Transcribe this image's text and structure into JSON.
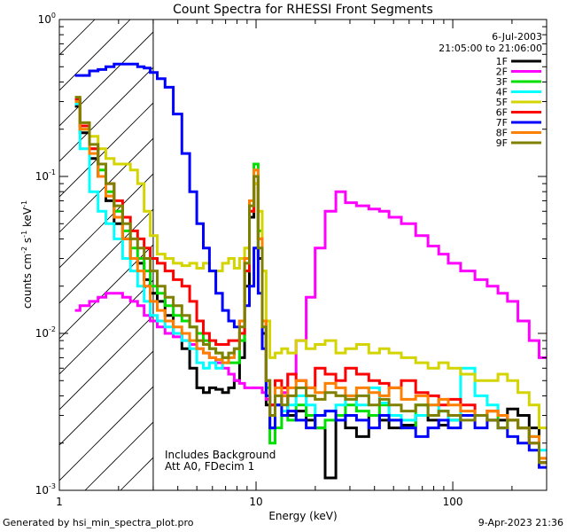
{
  "chart_data": {
    "type": "line",
    "title": "Count Spectra for RHESSI Front Segments",
    "xlabel": "Energy (keV)",
    "ylabel": "counts cm^-2 s^-1 keV^-1",
    "ylabel_parts": {
      "a": "counts cm",
      "b": "-2",
      "c": " s",
      "d": "-1",
      "e": " keV",
      "f": "-1"
    },
    "xscale": "log",
    "yscale": "log",
    "xlim": [
      1,
      300
    ],
    "ylim": [
      0.001,
      1
    ],
    "x_ticks": [
      {
        "value": 1,
        "label": "1"
      },
      {
        "value": 10,
        "label": "10"
      },
      {
        "value": 100,
        "label": "100"
      }
    ],
    "y_ticks": [
      {
        "value": 0.001,
        "base": "10",
        "exp": "-3"
      },
      {
        "value": 0.01,
        "base": "10",
        "exp": "-2"
      },
      {
        "value": 0.1,
        "base": "10",
        "exp": "-1"
      },
      {
        "value": 1,
        "base": "10",
        "exp": "0"
      }
    ],
    "date": "6-Jul-2003",
    "time_range": "21:05:00 to 21:06:00",
    "hatched_region_max_keV": 3,
    "annotations": [
      "Includes Background",
      "Att A0, FDecim 1"
    ],
    "series": [
      {
        "name": "1F",
        "color": "#000000",
        "x": [
          1.2,
          1.35,
          1.5,
          1.65,
          1.8,
          2.0,
          2.2,
          2.4,
          2.6,
          2.8,
          3.0,
          3.3,
          3.6,
          4.0,
          4.4,
          4.8,
          5.2,
          5.6,
          6.0,
          6.5,
          7.0,
          7.5,
          8.0,
          8.5,
          9.0,
          9.5,
          10.0,
          10.5,
          11.0,
          11.5,
          12,
          13,
          14,
          15,
          17,
          19,
          21,
          24,
          27,
          30,
          35,
          40,
          45,
          50,
          60,
          70,
          80,
          90,
          100,
          120,
          140,
          160,
          180,
          200,
          230,
          260,
          290
        ],
        "y": [
          0.28,
          0.19,
          0.13,
          0.1,
          0.07,
          0.05,
          0.04,
          0.03,
          0.028,
          0.022,
          0.018,
          0.016,
          0.013,
          0.01,
          0.008,
          0.006,
          0.0045,
          0.0042,
          0.0045,
          0.0044,
          0.0042,
          0.0045,
          0.005,
          0.007,
          0.02,
          0.055,
          0.09,
          0.03,
          0.01,
          0.0035,
          0.0025,
          0.0035,
          0.004,
          0.003,
          0.0032,
          0.0028,
          0.0025,
          0.0012,
          0.003,
          0.0025,
          0.0022,
          0.003,
          0.0028,
          0.0025,
          0.0026,
          0.003,
          0.0028,
          0.0026,
          0.0028,
          0.003,
          0.003,
          0.0028,
          0.0028,
          0.0033,
          0.003,
          0.0025,
          0.0015
        ]
      },
      {
        "name": "2F",
        "color": "#ff00ff",
        "x": [
          1.2,
          1.35,
          1.5,
          1.65,
          1.8,
          2.0,
          2.2,
          2.4,
          2.6,
          2.8,
          3.0,
          3.3,
          3.6,
          4.0,
          4.4,
          4.8,
          5.2,
          5.6,
          6.0,
          6.5,
          7.0,
          7.5,
          8.0,
          8.5,
          9.0,
          9.5,
          10.0,
          10.5,
          11.0,
          11.5,
          12,
          13,
          14,
          15,
          17,
          19,
          21,
          24,
          27,
          30,
          35,
          40,
          45,
          50,
          60,
          70,
          80,
          90,
          100,
          120,
          140,
          160,
          180,
          200,
          230,
          260,
          290
        ],
        "y": [
          0.014,
          0.015,
          0.016,
          0.017,
          0.018,
          0.018,
          0.017,
          0.016,
          0.015,
          0.013,
          0.012,
          0.011,
          0.01,
          0.0095,
          0.009,
          0.0085,
          0.008,
          0.0075,
          0.007,
          0.0065,
          0.006,
          0.0055,
          0.005,
          0.0048,
          0.0045,
          0.0045,
          0.0045,
          0.0045,
          0.0042,
          0.0038,
          0.0035,
          0.0035,
          0.0042,
          0.0055,
          0.009,
          0.017,
          0.035,
          0.06,
          0.08,
          0.068,
          0.065,
          0.062,
          0.06,
          0.055,
          0.05,
          0.042,
          0.036,
          0.032,
          0.028,
          0.025,
          0.022,
          0.02,
          0.018,
          0.016,
          0.012,
          0.009,
          0.007
        ]
      },
      {
        "name": "3F",
        "color": "#00e000",
        "x": [
          1.2,
          1.35,
          1.5,
          1.65,
          1.8,
          2.0,
          2.2,
          2.4,
          2.6,
          2.8,
          3.0,
          3.3,
          3.6,
          4.0,
          4.4,
          4.8,
          5.2,
          5.6,
          6.0,
          6.5,
          7.0,
          7.5,
          8.0,
          8.5,
          9.0,
          9.5,
          10.0,
          10.5,
          11.0,
          11.5,
          12,
          13,
          14,
          15,
          17,
          19,
          21,
          24,
          27,
          30,
          35,
          40,
          45,
          50,
          60,
          70,
          80,
          90,
          100,
          120,
          140,
          160,
          180,
          200,
          230,
          260,
          290
        ],
        "y": [
          0.3,
          0.2,
          0.15,
          0.11,
          0.08,
          0.06,
          0.045,
          0.035,
          0.03,
          0.025,
          0.02,
          0.018,
          0.015,
          0.013,
          0.012,
          0.011,
          0.01,
          0.009,
          0.008,
          0.0075,
          0.007,
          0.0065,
          0.0065,
          0.009,
          0.025,
          0.06,
          0.12,
          0.045,
          0.012,
          0.0045,
          0.002,
          0.0025,
          0.003,
          0.0028,
          0.0035,
          0.003,
          0.0025,
          0.0028,
          0.003,
          0.0035,
          0.0032,
          0.003,
          0.0035,
          0.0028,
          0.0025,
          0.0035,
          0.003,
          0.0032,
          0.0028,
          0.003,
          0.003,
          0.0032,
          0.0025,
          0.0028,
          0.0025,
          0.0022,
          0.0016
        ]
      },
      {
        "name": "4F",
        "color": "#00ffff",
        "x": [
          1.2,
          1.35,
          1.5,
          1.65,
          1.8,
          2.0,
          2.2,
          2.4,
          2.6,
          2.8,
          3.0,
          3.3,
          3.6,
          4.0,
          4.4,
          4.8,
          5.2,
          5.6,
          6.0,
          6.5,
          7.0,
          7.5,
          8.0,
          8.5,
          9.0,
          9.5,
          10.0,
          10.5,
          11.0,
          11.5,
          12,
          13,
          14,
          15,
          17,
          19,
          21,
          24,
          27,
          30,
          35,
          40,
          45,
          50,
          60,
          70,
          80,
          90,
          100,
          120,
          140,
          160,
          180,
          200,
          230,
          260,
          290
        ],
        "y": [
          0.29,
          0.15,
          0.08,
          0.06,
          0.05,
          0.04,
          0.03,
          0.025,
          0.02,
          0.016,
          0.013,
          0.012,
          0.011,
          0.01,
          0.009,
          0.008,
          0.0065,
          0.006,
          0.0065,
          0.006,
          0.0065,
          0.007,
          0.008,
          0.01,
          0.025,
          0.065,
          0.11,
          0.035,
          0.011,
          0.005,
          0.003,
          0.0035,
          0.0032,
          0.0035,
          0.004,
          0.0035,
          0.003,
          0.0032,
          0.0035,
          0.004,
          0.0035,
          0.0045,
          0.0036,
          0.003,
          0.0028,
          0.003,
          0.0035,
          0.0032,
          0.0028,
          0.006,
          0.004,
          0.0035,
          0.003,
          0.0028,
          0.0025,
          0.0022,
          0.0018
        ]
      },
      {
        "name": "5F",
        "color": "#d4d400",
        "x": [
          1.2,
          1.35,
          1.5,
          1.65,
          1.8,
          2.0,
          2.2,
          2.4,
          2.6,
          2.8,
          3.0,
          3.3,
          3.6,
          4.0,
          4.4,
          4.8,
          5.2,
          5.6,
          6.0,
          6.5,
          7.0,
          7.5,
          8.0,
          8.5,
          9.0,
          9.5,
          10.0,
          10.5,
          11.0,
          11.5,
          12,
          13,
          14,
          15,
          17,
          19,
          21,
          24,
          27,
          30,
          35,
          40,
          45,
          50,
          60,
          70,
          80,
          90,
          100,
          120,
          140,
          160,
          180,
          200,
          230,
          260,
          290
        ],
        "y": [
          0.3,
          0.22,
          0.18,
          0.15,
          0.13,
          0.12,
          0.12,
          0.11,
          0.09,
          0.06,
          0.042,
          0.032,
          0.03,
          0.028,
          0.027,
          0.028,
          0.026,
          0.028,
          0.025,
          0.025,
          0.028,
          0.03,
          0.026,
          0.03,
          0.035,
          0.06,
          0.09,
          0.06,
          0.025,
          0.012,
          0.007,
          0.0075,
          0.008,
          0.0075,
          0.009,
          0.008,
          0.0085,
          0.009,
          0.0075,
          0.008,
          0.0085,
          0.0075,
          0.008,
          0.0075,
          0.007,
          0.0065,
          0.006,
          0.0065,
          0.006,
          0.0055,
          0.005,
          0.005,
          0.0055,
          0.005,
          0.0042,
          0.0035,
          0.0025
        ]
      },
      {
        "name": "6F",
        "color": "#ff0000",
        "x": [
          1.2,
          1.35,
          1.5,
          1.65,
          1.8,
          2.0,
          2.2,
          2.4,
          2.6,
          2.8,
          3.0,
          3.3,
          3.6,
          4.0,
          4.4,
          4.8,
          5.2,
          5.6,
          6.0,
          6.5,
          7.0,
          7.5,
          8.0,
          8.5,
          9.0,
          9.5,
          10.0,
          10.5,
          11.0,
          11.5,
          12,
          13,
          14,
          15,
          17,
          19,
          21,
          24,
          27,
          30,
          35,
          40,
          45,
          50,
          60,
          70,
          80,
          90,
          100,
          120,
          140,
          160,
          180,
          200,
          230,
          260,
          290
        ],
        "y": [
          0.31,
          0.21,
          0.15,
          0.12,
          0.09,
          0.07,
          0.055,
          0.045,
          0.04,
          0.035,
          0.03,
          0.028,
          0.025,
          0.022,
          0.02,
          0.016,
          0.012,
          0.01,
          0.009,
          0.0085,
          0.0085,
          0.009,
          0.009,
          0.01,
          0.025,
          0.06,
          0.1,
          0.04,
          0.012,
          0.005,
          0.0035,
          0.005,
          0.0045,
          0.0055,
          0.005,
          0.0045,
          0.006,
          0.0055,
          0.005,
          0.006,
          0.0055,
          0.005,
          0.0048,
          0.0045,
          0.005,
          0.0042,
          0.004,
          0.0035,
          0.0038,
          0.0035,
          0.003,
          0.0032,
          0.003,
          0.0028,
          0.0025,
          0.002,
          0.0015
        ]
      },
      {
        "name": "7F",
        "color": "#0000ff",
        "x": [
          1.2,
          1.35,
          1.5,
          1.65,
          1.8,
          2.0,
          2.2,
          2.4,
          2.6,
          2.8,
          3.0,
          3.3,
          3.6,
          4.0,
          4.4,
          4.8,
          5.2,
          5.6,
          6.0,
          6.5,
          7.0,
          7.5,
          8.0,
          8.5,
          9.0,
          9.5,
          10.0,
          10.5,
          11.0,
          11.5,
          12,
          13,
          14,
          15,
          17,
          19,
          21,
          24,
          27,
          30,
          35,
          40,
          45,
          50,
          60,
          70,
          80,
          90,
          100,
          120,
          140,
          160,
          180,
          200,
          230,
          260,
          290
        ],
        "y": [
          0.44,
          0.44,
          0.47,
          0.48,
          0.5,
          0.52,
          0.52,
          0.52,
          0.5,
          0.49,
          0.46,
          0.42,
          0.37,
          0.25,
          0.14,
          0.08,
          0.05,
          0.035,
          0.025,
          0.018,
          0.014,
          0.012,
          0.011,
          0.012,
          0.015,
          0.02,
          0.035,
          0.018,
          0.008,
          0.004,
          0.0025,
          0.0035,
          0.003,
          0.0032,
          0.0028,
          0.0025,
          0.003,
          0.0032,
          0.0028,
          0.003,
          0.0028,
          0.0025,
          0.003,
          0.0028,
          0.0025,
          0.0022,
          0.0025,
          0.0028,
          0.0025,
          0.003,
          0.0025,
          0.0028,
          0.0025,
          0.0022,
          0.002,
          0.0018,
          0.0014
        ]
      },
      {
        "name": "8F",
        "color": "#ff8000",
        "x": [
          1.2,
          1.35,
          1.5,
          1.65,
          1.8,
          2.0,
          2.2,
          2.4,
          2.6,
          2.8,
          3.0,
          3.3,
          3.6,
          4.0,
          4.4,
          4.8,
          5.2,
          5.6,
          6.0,
          6.5,
          7.0,
          7.5,
          8.0,
          8.5,
          9.0,
          9.5,
          10.0,
          10.5,
          11.0,
          11.5,
          12,
          13,
          14,
          15,
          17,
          19,
          21,
          24,
          27,
          30,
          35,
          40,
          45,
          50,
          60,
          70,
          80,
          90,
          100,
          120,
          140,
          160,
          180,
          200,
          230,
          260,
          290
        ],
        "y": [
          0.3,
          0.2,
          0.14,
          0.1,
          0.075,
          0.055,
          0.04,
          0.03,
          0.025,
          0.02,
          0.016,
          0.014,
          0.012,
          0.011,
          0.01,
          0.009,
          0.008,
          0.0075,
          0.007,
          0.0068,
          0.0065,
          0.007,
          0.008,
          0.012,
          0.03,
          0.07,
          0.11,
          0.04,
          0.012,
          0.005,
          0.003,
          0.0045,
          0.004,
          0.0045,
          0.005,
          0.0045,
          0.0042,
          0.0048,
          0.0045,
          0.004,
          0.0045,
          0.0042,
          0.004,
          0.0045,
          0.0038,
          0.004,
          0.0035,
          0.0038,
          0.0035,
          0.0032,
          0.003,
          0.0032,
          0.003,
          0.0028,
          0.0025,
          0.0022,
          0.0016
        ]
      },
      {
        "name": "9F",
        "color": "#808000",
        "x": [
          1.2,
          1.35,
          1.5,
          1.65,
          1.8,
          2.0,
          2.2,
          2.4,
          2.6,
          2.8,
          3.0,
          3.3,
          3.6,
          4.0,
          4.4,
          4.8,
          5.2,
          5.6,
          6.0,
          6.5,
          7.0,
          7.5,
          8.0,
          8.5,
          9.0,
          9.5,
          10.0,
          10.5,
          11.0,
          11.5,
          12,
          13,
          14,
          15,
          17,
          19,
          21,
          24,
          27,
          30,
          35,
          40,
          45,
          50,
          60,
          70,
          80,
          90,
          100,
          120,
          140,
          160,
          180,
          200,
          230,
          260,
          290
        ],
        "y": [
          0.32,
          0.22,
          0.16,
          0.12,
          0.09,
          0.065,
          0.05,
          0.04,
          0.035,
          0.03,
          0.025,
          0.02,
          0.017,
          0.015,
          0.013,
          0.011,
          0.009,
          0.0085,
          0.008,
          0.0075,
          0.007,
          0.0075,
          0.008,
          0.011,
          0.028,
          0.065,
          0.1,
          0.035,
          0.011,
          0.005,
          0.003,
          0.004,
          0.0035,
          0.004,
          0.0045,
          0.004,
          0.0038,
          0.0042,
          0.004,
          0.0038,
          0.004,
          0.0035,
          0.0038,
          0.0035,
          0.0032,
          0.0035,
          0.003,
          0.0032,
          0.003,
          0.0028,
          0.003,
          0.0028,
          0.0025,
          0.0028,
          0.0025,
          0.002,
          0.0015
        ]
      }
    ]
  },
  "footer": {
    "generated_by": "Generated by hsi_min_spectra_plot.pro",
    "timestamp": "9-Apr-2023 21:36"
  }
}
